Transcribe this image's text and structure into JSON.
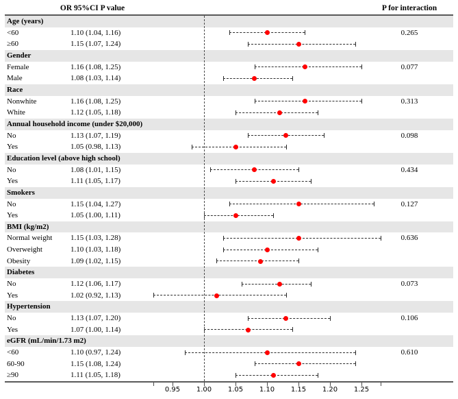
{
  "header": {
    "left_title": "OR 95%CI P value",
    "right_title": "P for interaction"
  },
  "colors": {
    "dot": "#ff0000",
    "band": "#e6e6e6",
    "rule": "#595959",
    "line": "#2b2b2b"
  },
  "axis": {
    "ticks": [
      {
        "value": 0.95,
        "label": "0.95"
      },
      {
        "value": 1.0,
        "label": "1.00"
      },
      {
        "value": 1.05,
        "label": "1.05"
      },
      {
        "value": 1.1,
        "label": "1.10"
      },
      {
        "value": 1.15,
        "label": "1.15"
      },
      {
        "value": 1.2,
        "label": "1.20"
      },
      {
        "value": 1.25,
        "label": "1.25"
      }
    ],
    "end_ticks": [
      0.92,
      1.28
    ],
    "reference_line": 1.0
  },
  "chart_data": {
    "type": "forest",
    "title": "",
    "xlabel": "",
    "xlim": [
      0.92,
      1.28
    ],
    "reference_value": 1.0,
    "legend_position": "none",
    "grid": false,
    "groups": [
      {
        "label": "Age (years)",
        "p_interaction": "0.265",
        "rows": [
          {
            "label": "<60",
            "or_ci": "1.10 (1.04, 1.16)",
            "or": 1.1,
            "lo": 1.04,
            "hi": 1.16
          },
          {
            "label": "≥60",
            "or_ci": "1.15 (1.07, 1.24)",
            "or": 1.15,
            "lo": 1.07,
            "hi": 1.24
          }
        ]
      },
      {
        "label": "Gender",
        "p_interaction": "0.077",
        "rows": [
          {
            "label": "Female",
            "or_ci": "1.16 (1.08, 1.25)",
            "or": 1.16,
            "lo": 1.08,
            "hi": 1.25
          },
          {
            "label": "Male",
            "or_ci": "1.08 (1.03, 1.14)",
            "or": 1.08,
            "lo": 1.03,
            "hi": 1.14
          }
        ]
      },
      {
        "label": "Race",
        "p_interaction": "0.313",
        "rows": [
          {
            "label": "Nonwhite",
            "or_ci": "1.16 (1.08, 1.25)",
            "or": 1.16,
            "lo": 1.08,
            "hi": 1.25
          },
          {
            "label": "White",
            "or_ci": "1.12 (1.05, 1.18)",
            "or": 1.12,
            "lo": 1.05,
            "hi": 1.18
          }
        ]
      },
      {
        "label": "Annual household income (under $20,000)",
        "p_interaction": "0.098",
        "rows": [
          {
            "label": "No",
            "or_ci": "1.13 (1.07, 1.19)",
            "or": 1.13,
            "lo": 1.07,
            "hi": 1.19
          },
          {
            "label": "Yes",
            "or_ci": "1.05 (0.98, 1.13)",
            "or": 1.05,
            "lo": 0.98,
            "hi": 1.13
          }
        ]
      },
      {
        "label": "Education level (above high school)",
        "p_interaction": "0.434",
        "rows": [
          {
            "label": "No",
            "or_ci": "1.08 (1.01, 1.15)",
            "or": 1.08,
            "lo": 1.01,
            "hi": 1.15
          },
          {
            "label": "Yes",
            "or_ci": "1.11 (1.05, 1.17)",
            "or": 1.11,
            "lo": 1.05,
            "hi": 1.17
          }
        ]
      },
      {
        "label": "Smokers",
        "p_interaction": "0.127",
        "rows": [
          {
            "label": "No",
            "or_ci": "1.15 (1.04, 1.27)",
            "or": 1.15,
            "lo": 1.04,
            "hi": 1.27
          },
          {
            "label": "Yes",
            "or_ci": "1.05 (1.00, 1.11)",
            "or": 1.05,
            "lo": 1.0,
            "hi": 1.11
          }
        ]
      },
      {
        "label": "BMI (kg/m2)",
        "p_interaction": "0.636",
        "rows": [
          {
            "label": "Normal weight",
            "or_ci": "1.15 (1.03, 1.28)",
            "or": 1.15,
            "lo": 1.03,
            "hi": 1.28
          },
          {
            "label": "Overweight",
            "or_ci": "1.10 (1.03, 1.18)",
            "or": 1.1,
            "lo": 1.03,
            "hi": 1.18
          },
          {
            "label": "Obesity",
            "or_ci": "1.09 (1.02, 1.15)",
            "or": 1.09,
            "lo": 1.02,
            "hi": 1.15
          }
        ]
      },
      {
        "label": "Diabetes",
        "p_interaction": "0.073",
        "rows": [
          {
            "label": "No",
            "or_ci": "1.12 (1.06, 1.17)",
            "or": 1.12,
            "lo": 1.06,
            "hi": 1.17
          },
          {
            "label": "Yes",
            "or_ci": "1.02 (0.92, 1.13)",
            "or": 1.02,
            "lo": 0.92,
            "hi": 1.13
          }
        ]
      },
      {
        "label": "Hypertension",
        "p_interaction": "0.106",
        "rows": [
          {
            "label": "No",
            "or_ci": "1.13 (1.07, 1.20)",
            "or": 1.13,
            "lo": 1.07,
            "hi": 1.2
          },
          {
            "label": "Yes",
            "or_ci": "1.07 (1.00, 1.14)",
            "or": 1.07,
            "lo": 1.0,
            "hi": 1.14
          }
        ]
      },
      {
        "label": "eGFR (mL/min/1.73 m2)",
        "p_interaction": "0.610",
        "rows": [
          {
            "label": "<60",
            "or_ci": "1.10 (0.97, 1.24)",
            "or": 1.1,
            "lo": 0.97,
            "hi": 1.24
          },
          {
            "label": "60-90",
            "or_ci": "1.15 (1.08, 1.24)",
            "or": 1.15,
            "lo": 1.08,
            "hi": 1.24
          },
          {
            "label": "≥90",
            "or_ci": "1.11 (1.05, 1.18)",
            "or": 1.11,
            "lo": 1.05,
            "hi": 1.18
          }
        ]
      }
    ]
  }
}
